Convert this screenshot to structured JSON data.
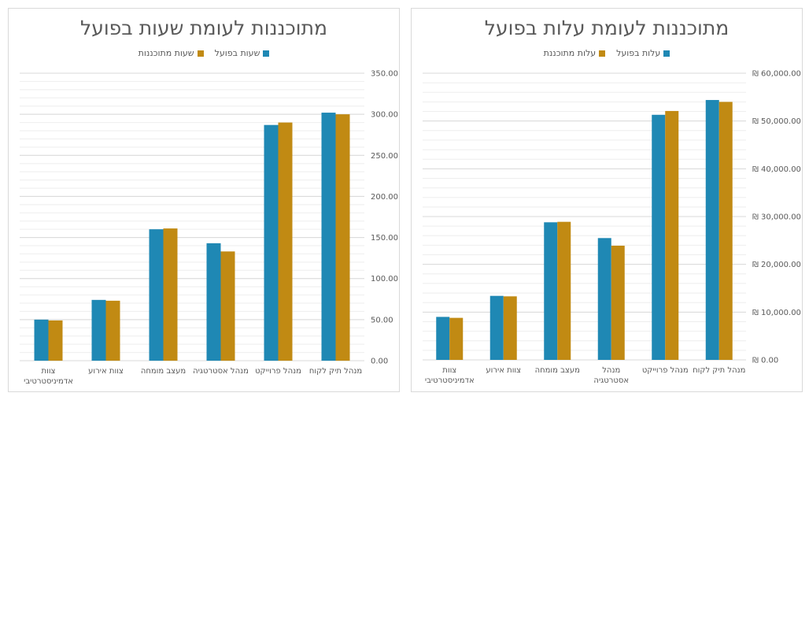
{
  "colors": {
    "actual": "#1f88b4",
    "planned": "#c18a13",
    "grid": "#d9d9d9",
    "text": "#595959"
  },
  "chart_data": [
    {
      "id": "hours",
      "type": "bar",
      "title": "מתוכננות לעומת שעות בפועל",
      "categories": [
        "מנהל תיק לקוח",
        "מנהל פרוייקט",
        "מנהל אסטרטגיה",
        "מעצב מומחה",
        "צוות אירוע",
        "צוות אדמיניסטרטיבי"
      ],
      "category_lines": [
        [
          "מנהל תיק לקוח"
        ],
        [
          "מנהל פרוייקט"
        ],
        [
          "מנהל אסטרטגיה"
        ],
        [
          "מעצב מומחה"
        ],
        [
          "צוות אירוע"
        ],
        [
          "צוות",
          "אדמיניסטרטיבי"
        ]
      ],
      "series": [
        {
          "name": "שעות בפועל",
          "color_key": "actual",
          "values": [
            302,
            287,
            143,
            160,
            74,
            50
          ]
        },
        {
          "name": "שעות מתוכננות",
          "color_key": "planned",
          "values": [
            300,
            290,
            133,
            161,
            73,
            49
          ]
        }
      ],
      "ylim": [
        0,
        350
      ],
      "yticks": [
        "350.00",
        "300.00",
        "250.00",
        "200.00",
        "150.00",
        "100.00",
        "50.00",
        "0.00"
      ],
      "ytick_values": [
        350,
        300,
        250,
        200,
        150,
        100,
        50,
        0
      ],
      "xlabel": "",
      "ylabel": "",
      "axis_side": "right",
      "legend": "top-center",
      "grid": true
    },
    {
      "id": "cost",
      "type": "bar",
      "title": "מתוכננות לעומת עלות בפועל",
      "categories": [
        "מנהל תיק לקוח",
        "מנהל פרוייקט",
        "מנהל אסטרטגיה",
        "מעצב מומחה",
        "צוות אירוע",
        "צוות אדמיניסטרטיבי"
      ],
      "category_lines": [
        [
          "מנהל תיק לקוח"
        ],
        [
          "מנהל פרוייקט"
        ],
        [
          "מנהל",
          "אסטרטגיה"
        ],
        [
          "מעצב מומחה"
        ],
        [
          "צוות אירוע"
        ],
        [
          "צוות",
          "אדמיניסטרטיבי"
        ]
      ],
      "series": [
        {
          "name": "עלות בפועל",
          "color_key": "actual",
          "values": [
            54400,
            51300,
            25500,
            28800,
            13400,
            9000
          ]
        },
        {
          "name": "עלות מתוכננת",
          "color_key": "planned",
          "values": [
            54000,
            52100,
            23900,
            28900,
            13300,
            8800
          ]
        }
      ],
      "ylim": [
        0,
        60000
      ],
      "yticks": [
        "₪ 60,000.00",
        "₪ 50,000.00",
        "₪ 40,000.00",
        "₪ 30,000.00",
        "₪ 20,000.00",
        "₪ 10,000.00",
        "₪ 0.00"
      ],
      "ytick_values": [
        60000,
        50000,
        40000,
        30000,
        20000,
        10000,
        0
      ],
      "xlabel": "",
      "ylabel": "",
      "axis_side": "right",
      "legend": "top-center",
      "grid": true
    }
  ]
}
